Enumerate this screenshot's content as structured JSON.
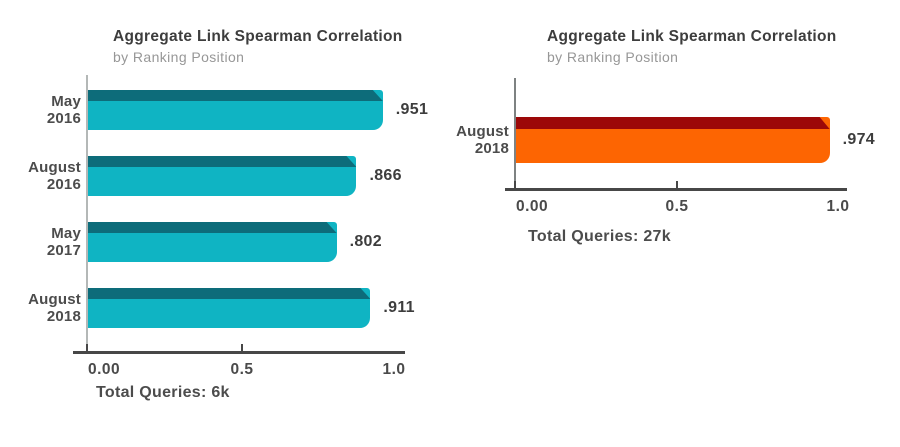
{
  "chart_data": [
    {
      "type": "bar",
      "orientation": "horizontal",
      "title": "Aggregate Link Spearman Correlation",
      "subtitle": "by Ranking Position",
      "categories": [
        [
          "May",
          "2016"
        ],
        [
          "August",
          "2016"
        ],
        [
          "May",
          "2017"
        ],
        [
          "August",
          "2018"
        ]
      ],
      "values": [
        0.951,
        0.866,
        0.802,
        0.911
      ],
      "value_labels": [
        ".951",
        ".866",
        ".802",
        ".911"
      ],
      "xlim": [
        0,
        1.0
      ],
      "x_ticks": [
        "0.00",
        "0.5",
        "1.0"
      ],
      "footnote": "Total Queries: 6k",
      "bar_color": "#0fb4c3",
      "bar_stripe_color": "#0d6c7a",
      "grid": false,
      "legend": "none"
    },
    {
      "type": "bar",
      "orientation": "horizontal",
      "title": "Aggregate Link Spearman Correlation",
      "subtitle": "by Ranking Position",
      "categories": [
        [
          "August",
          "2018"
        ]
      ],
      "values": [
        0.974
      ],
      "value_labels": [
        ".974"
      ],
      "xlim": [
        0,
        1.0
      ],
      "x_ticks": [
        "0.00",
        "0.5",
        "1.0"
      ],
      "footnote": "Total Queries: 27k",
      "bar_color": "#fd6502",
      "bar_stripe_color": "#9c0808",
      "grid": false,
      "legend": "none"
    }
  ]
}
